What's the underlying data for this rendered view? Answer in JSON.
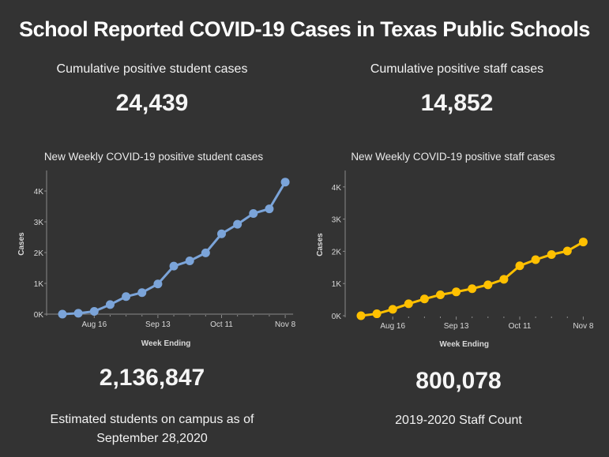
{
  "title": "School Reported COVID-19 Cases in Texas Public Schools",
  "kpis": {
    "students": {
      "label": "Cumulative positive student cases",
      "value": "24,439"
    },
    "staff": {
      "label": "Cumulative positive staff cases",
      "value": "14,852"
    }
  },
  "footer": {
    "students": {
      "value": "2,136,847",
      "label_line1": "Estimated students on campus as of",
      "label_line2": "September 28,2020"
    },
    "staff": {
      "value": "800,078",
      "label_line1": "2019-2020 Staff Count"
    }
  },
  "chart_data": [
    {
      "type": "line",
      "title": "New Weekly COVID-19 positive student cases",
      "xlabel": "Week Ending",
      "ylabel": "Cases",
      "color": "#7ba4d9",
      "x": [
        "Aug 2",
        "Aug 9",
        "Aug 16",
        "Aug 23",
        "Aug 30",
        "Sep 6",
        "Sep 13",
        "Sep 20",
        "Sep 27",
        "Oct 4",
        "Oct 11",
        "Oct 18",
        "Oct 25",
        "Nov 1",
        "Nov 8"
      ],
      "values": [
        0,
        30,
        90,
        310,
        570,
        700,
        980,
        1560,
        1730,
        1990,
        2610,
        2920,
        3270,
        3420,
        4290
      ],
      "xticks": [
        "Aug 16",
        "Sep 13",
        "Oct 11",
        "Nov 8"
      ],
      "yticks": [
        "0K",
        "1K",
        "2K",
        "3K",
        "4K"
      ],
      "ylim": [
        0,
        4600
      ]
    },
    {
      "type": "line",
      "title": "New Weekly COVID-19 positive staff cases",
      "xlabel": "Week Ending",
      "ylabel": "Cases",
      "color": "#ffc000",
      "x": [
        "Aug 2",
        "Aug 9",
        "Aug 16",
        "Aug 23",
        "Aug 30",
        "Sep 6",
        "Sep 13",
        "Sep 20",
        "Sep 27",
        "Oct 4",
        "Oct 11",
        "Oct 18",
        "Oct 25",
        "Nov 1",
        "Nov 8"
      ],
      "values": [
        0,
        60,
        200,
        370,
        520,
        650,
        740,
        840,
        960,
        1130,
        1550,
        1740,
        1900,
        2010,
        2290
      ],
      "xticks": [
        "Aug 16",
        "Sep 13",
        "Oct 11",
        "Nov 8"
      ],
      "yticks": [
        "0K",
        "1K",
        "2K",
        "3K",
        "4K"
      ],
      "ylim": [
        0,
        4500
      ]
    }
  ]
}
